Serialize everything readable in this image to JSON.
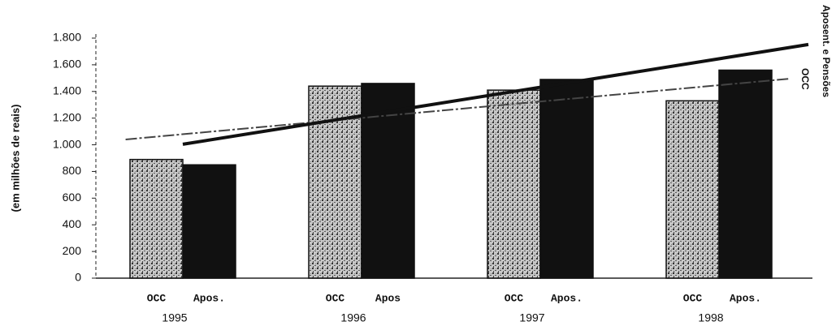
{
  "chart_data": {
    "type": "bar",
    "y_label": "(em milhões de reais)",
    "categories": [
      "1995",
      "1996",
      "1997",
      "1998"
    ],
    "bar_labels": [
      [
        "OCC",
        "Apos."
      ],
      [
        "OCC",
        "Apos"
      ],
      [
        "OCC",
        "Apos."
      ],
      [
        "OCC",
        "Apos."
      ]
    ],
    "series": [
      {
        "name": "OCC",
        "color": "#9a9a9a",
        "values": [
          890,
          1440,
          1410,
          1330
        ],
        "trend": {
          "x": [
            1994.68,
            1998.4
          ],
          "values": [
            1040,
            1496
          ]
        }
      },
      {
        "name": "Aposent. e Pensões",
        "color": "#111111",
        "values": [
          850,
          1460,
          1490,
          1560
        ],
        "trend": {
          "x": [
            1995,
            1998.5
          ],
          "values": [
            1004,
            1752
          ]
        }
      }
    ],
    "ylim": [
      0,
      1800
    ],
    "yticks": [
      0,
      200,
      400,
      600,
      800,
      {
        "value": 1000,
        "label": "1.000"
      },
      {
        "value": 1200,
        "label": "1.200"
      },
      {
        "value": 1400,
        "label": "1.400"
      },
      {
        "value": 1600,
        "label": "1.600"
      },
      {
        "value": 1800,
        "label": "1.800"
      }
    ]
  }
}
